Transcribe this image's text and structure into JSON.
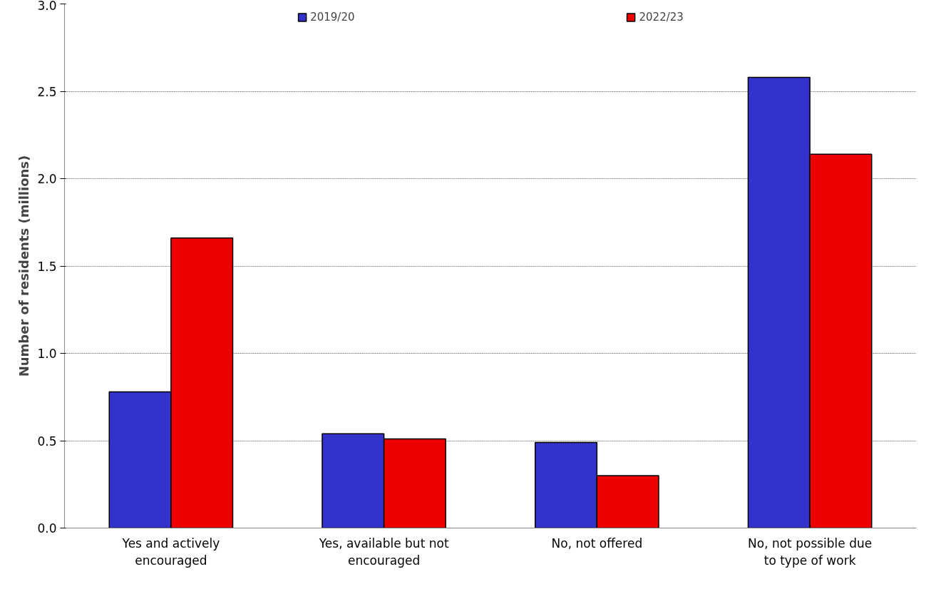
{
  "chart_data": {
    "type": "bar",
    "ylabel": "Number of residents (millions)",
    "categories": [
      "Yes and actively encouraged",
      "Yes, available but not encouraged",
      "No, not offered",
      "No, not possible due to type of work"
    ],
    "series": [
      {
        "name": "2019/20",
        "color": "#3333cc",
        "values": [
          0.78,
          0.54,
          0.49,
          2.58
        ]
      },
      {
        "name": "2022/23",
        "color": "#ee0000",
        "values": [
          1.66,
          0.51,
          0.3,
          2.14
        ]
      }
    ],
    "ylim": [
      0,
      3
    ],
    "yticks": [
      {
        "value": 0,
        "label": "0.0"
      },
      {
        "value": 0.5,
        "label": "0.5"
      },
      {
        "value": 1,
        "label": "1.0"
      },
      {
        "value": 1.5,
        "label": "1.5"
      },
      {
        "value": 2,
        "label": "2.0"
      },
      {
        "value": 2.5,
        "label": "2.5"
      },
      {
        "value": 3,
        "label": "3.0"
      }
    ],
    "grid": "y",
    "legend": "top"
  }
}
